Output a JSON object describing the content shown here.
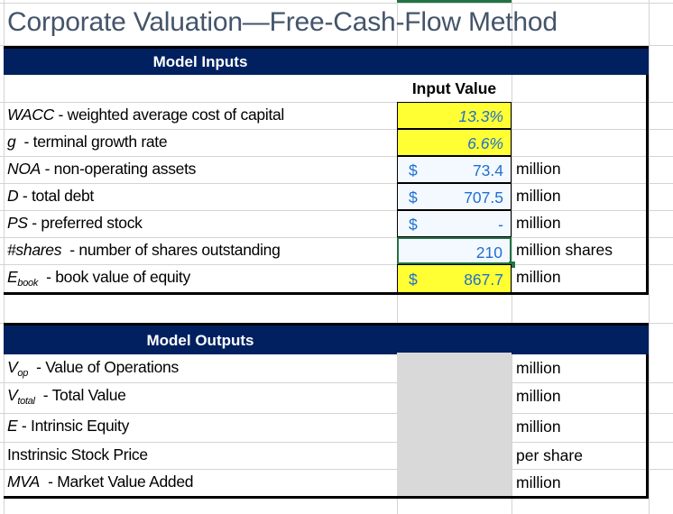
{
  "title": "Corporate Valuation—Free-Cash-Flow Method",
  "inputs": {
    "header": "Model Inputs",
    "column_header": "Input Value",
    "rows": [
      {
        "abbr": "WACC",
        "desc": " - weighted average cost of capital",
        "value": "13.3%",
        "currency": "",
        "unit": "",
        "fill": "#ffff33"
      },
      {
        "abbr": "g",
        "desc": "  - terminal growth rate",
        "value": "6.6%",
        "currency": "",
        "unit": "",
        "fill": "#ffff33"
      },
      {
        "abbr": "NOA",
        "desc": " - non-operating assets",
        "value": "73.4",
        "currency": "$",
        "unit": "million",
        "fill": "#f3f9ff"
      },
      {
        "abbr": "D",
        "desc": " - total debt",
        "value": "707.5",
        "currency": "$",
        "unit": "million",
        "fill": "#f3f9ff"
      },
      {
        "abbr": "PS",
        "desc": " - preferred stock",
        "value": "-",
        "currency": "$",
        "unit": "million",
        "fill": "#f3f9ff"
      },
      {
        "abbr": "#shares",
        "desc": "  - number of shares outstanding",
        "value": "210",
        "currency": "",
        "unit": "million shares",
        "fill": "#f3f9ff"
      },
      {
        "abbr": "E",
        "sub": "book",
        "desc": "  - book value of equity",
        "value": "867.7",
        "currency": "$",
        "unit": "million",
        "fill": "#ffff33"
      }
    ]
  },
  "outputs": {
    "header": "Model Outputs",
    "rows": [
      {
        "abbr": "V",
        "sub": "op",
        "desc": "  - Value of Operations",
        "unit": "million"
      },
      {
        "abbr": "V",
        "sub": "total",
        "desc": "  - Total Value",
        "unit": "million"
      },
      {
        "abbr": "E",
        "desc": " - Intrinsic Equity",
        "unit": "million"
      },
      {
        "abbr": "",
        "desc": "Instrinsic Stock Price",
        "unit": "per share"
      },
      {
        "abbr": "MVA",
        "desc": "  - Market Value Added",
        "unit": "million"
      }
    ]
  },
  "colors": {
    "header_band": "#002060",
    "input_yellow": "#ffff33",
    "value_blue": "#1f6fcf",
    "output_gray": "#d9d9d9",
    "selection": "#217346"
  }
}
